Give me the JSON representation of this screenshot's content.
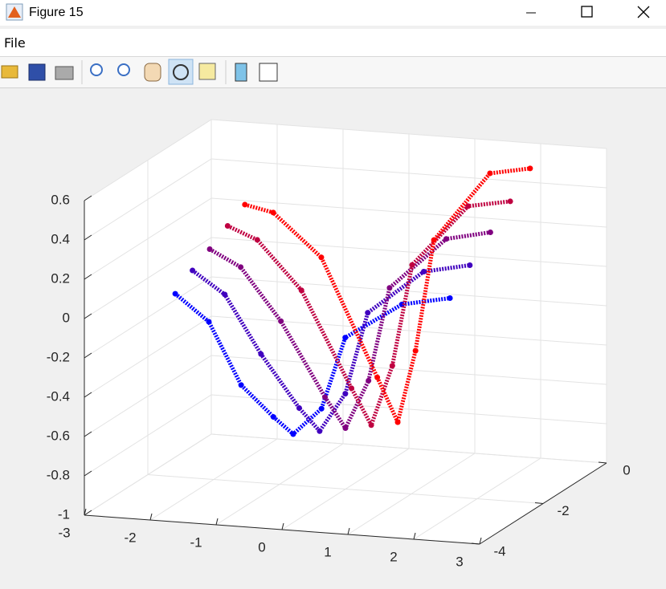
{
  "window": {
    "title": "Figure 15",
    "menu": [
      "File"
    ]
  },
  "chart_data": {
    "type": "scatter3",
    "xlim": [
      -3,
      3
    ],
    "ylim": [
      -4,
      0
    ],
    "zlim": [
      -1,
      0.6
    ],
    "xticks": [
      -3,
      -2,
      -1,
      0,
      1,
      2,
      3
    ],
    "yticks": [
      -4,
      -2,
      0
    ],
    "zticks": [
      -1,
      -0.8,
      -0.6,
      -0.4,
      -0.2,
      0,
      0.2,
      0.4,
      0.6
    ],
    "grid": true,
    "series": [
      {
        "color": "#0000ff",
        "x": [
          -1.62,
          -1.11,
          -0.62,
          -0.13,
          0.17,
          0.6,
          0.96,
          1.82,
          2.55
        ],
        "y": [
          -4,
          -4,
          -4,
          -4,
          -4,
          -4,
          -4,
          -4,
          -4
        ],
        "z": [
          0.16,
          0.03,
          -0.28,
          -0.43,
          -0.51,
          -0.37,
          0.0,
          0.19,
          0.24
        ]
      },
      {
        "color": "#4000bf",
        "x": [
          -1.84,
          -1.35,
          -0.8,
          -0.22,
          0.09,
          0.48,
          0.82,
          1.67,
          2.37
        ],
        "y": [
          -3,
          -3,
          -3,
          -3,
          -3,
          -3,
          -3,
          -3,
          -3
        ],
        "z": [
          0.17,
          0.06,
          -0.23,
          -0.49,
          -0.6,
          -0.4,
          0.02,
          0.25,
          0.3
        ]
      },
      {
        "color": "#800080",
        "x": [
          -2.06,
          -1.59,
          -0.98,
          -0.31,
          0.0,
          0.35,
          0.67,
          1.53,
          2.2
        ],
        "y": [
          -2,
          -2,
          -2,
          -2,
          -2,
          -2,
          -2,
          -2,
          -2
        ],
        "z": [
          0.17,
          0.09,
          -0.17,
          -0.54,
          -0.69,
          -0.44,
          0.04,
          0.31,
          0.36
        ]
      },
      {
        "color": "#bf0040",
        "x": [
          -2.27,
          -1.82,
          -1.15,
          -0.39,
          -0.09,
          0.23,
          0.53,
          1.38,
          2.02
        ],
        "y": [
          -1,
          -1,
          -1,
          -1,
          -1,
          -1,
          -1,
          -1,
          -1
        ],
        "z": [
          0.18,
          0.12,
          -0.12,
          -0.6,
          -0.78,
          -0.47,
          0.05,
          0.37,
          0.41
        ]
      },
      {
        "color": "#ff0000",
        "x": [
          -2.49,
          -2.06,
          -1.33,
          -0.48,
          -0.17,
          0.1,
          0.38,
          1.23,
          1.84
        ],
        "y": [
          0,
          0,
          0,
          0,
          0,
          0,
          0,
          0,
          0
        ],
        "z": [
          0.18,
          0.15,
          -0.06,
          -0.65,
          -0.87,
          -0.5,
          0.07,
          0.43,
          0.47
        ]
      }
    ]
  }
}
